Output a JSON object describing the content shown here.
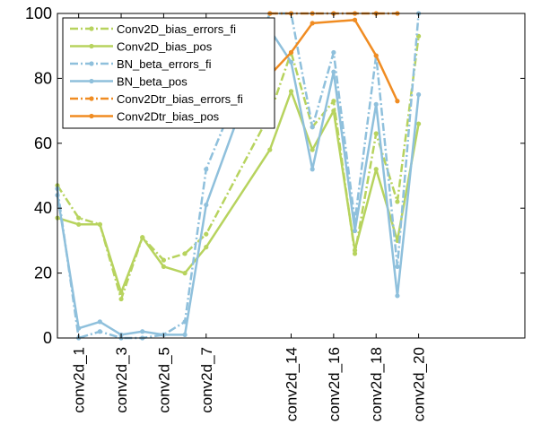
{
  "chart_data": {
    "type": "line",
    "title": "",
    "xlabel": "",
    "ylabel": "",
    "ylim": [
      0,
      100
    ],
    "xlim": [
      0,
      22
    ],
    "y_ticks": [
      0,
      20,
      40,
      60,
      80,
      100
    ],
    "x_tick_positions": [
      1,
      3,
      5,
      7,
      11,
      13,
      15,
      17
    ],
    "x_tick_labels": [
      "conv2d_1",
      "conv2d_3",
      "conv2d_5",
      "conv2d_7",
      "conv2d_14",
      "conv2d_16",
      "conv2d_18",
      "conv2d_20"
    ],
    "grid": false,
    "legend_position": "top-left",
    "series": [
      {
        "name": "Conv2D_bias_errors_fi",
        "color": "#b7d35e",
        "dash": "dashdot",
        "points": [
          [
            0,
            47
          ],
          [
            1,
            37
          ],
          [
            2,
            35
          ],
          [
            3,
            12
          ],
          [
            4,
            31
          ],
          [
            5,
            24
          ],
          [
            6,
            26
          ],
          [
            7,
            32
          ],
          [
            10,
            69
          ],
          [
            11,
            88
          ],
          [
            12,
            65
          ],
          [
            13,
            73
          ],
          [
            14,
            26
          ],
          [
            15,
            63
          ],
          [
            16,
            42
          ],
          [
            17,
            93
          ]
        ]
      },
      {
        "name": "Conv2D_bias_pos",
        "color": "#b7d35e",
        "dash": "solid",
        "points": [
          [
            0,
            37
          ],
          [
            1,
            35
          ],
          [
            2,
            35
          ],
          [
            3,
            14
          ],
          [
            4,
            31
          ],
          [
            5,
            22
          ],
          [
            6,
            20
          ],
          [
            7,
            28
          ],
          [
            10,
            58
          ],
          [
            11,
            76
          ],
          [
            12,
            58
          ],
          [
            13,
            70
          ],
          [
            14,
            27
          ],
          [
            15,
            52
          ],
          [
            16,
            30
          ],
          [
            17,
            66
          ]
        ]
      },
      {
        "name": "BN_beta_errors_fi",
        "color": "#8fc0dc",
        "dash": "dashdot",
        "points": [
          [
            0,
            46
          ],
          [
            1,
            0
          ],
          [
            2,
            2
          ],
          [
            3,
            0
          ],
          [
            4,
            0
          ],
          [
            5,
            1
          ],
          [
            6,
            5
          ],
          [
            7,
            52
          ],
          [
            10,
            100
          ],
          [
            11,
            100
          ],
          [
            12,
            65
          ],
          [
            13,
            88
          ],
          [
            14,
            36
          ],
          [
            15,
            87
          ],
          [
            16,
            22
          ],
          [
            17,
            100
          ]
        ]
      },
      {
        "name": "BN_beta_pos",
        "color": "#8fc0dc",
        "dash": "solid",
        "points": [
          [
            0,
            44
          ],
          [
            1,
            3
          ],
          [
            2,
            5
          ],
          [
            3,
            1
          ],
          [
            4,
            2
          ],
          [
            5,
            1
          ],
          [
            6,
            1
          ],
          [
            7,
            41
          ],
          [
            10,
            95
          ],
          [
            11,
            85
          ],
          [
            12,
            52
          ],
          [
            13,
            82
          ],
          [
            14,
            33
          ],
          [
            15,
            72
          ],
          [
            16,
            13
          ],
          [
            17,
            75
          ]
        ]
      },
      {
        "name": "Conv2Dtr_bias_errors_fi",
        "color": "#f08c22",
        "dash": "dashdot",
        "points": [
          [
            10,
            100
          ],
          [
            11,
            100
          ],
          [
            12,
            100
          ],
          [
            13,
            100
          ],
          [
            14,
            100
          ],
          [
            15,
            100
          ],
          [
            16,
            100
          ]
        ]
      },
      {
        "name": "Conv2Dtr_bias_pos",
        "color": "#f08c22",
        "dash": "solid",
        "points": [
          [
            10,
            81
          ],
          [
            11,
            88
          ],
          [
            12,
            97
          ],
          [
            14,
            98
          ],
          [
            15,
            87
          ],
          [
            16,
            73
          ]
        ]
      }
    ]
  }
}
